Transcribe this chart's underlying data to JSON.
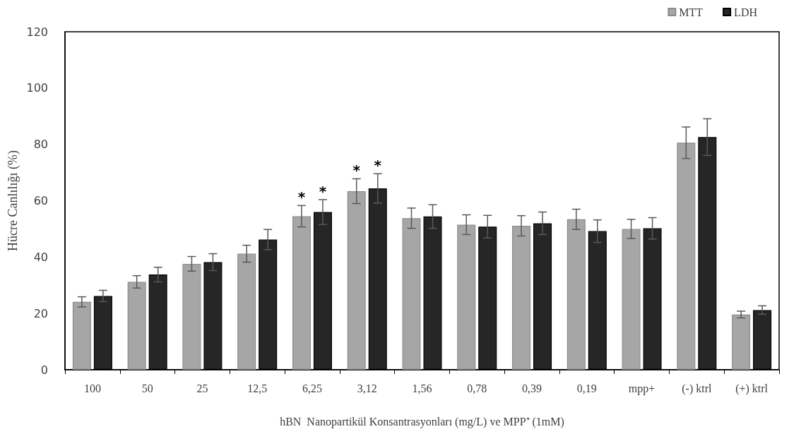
{
  "chart_data": {
    "type": "bar",
    "xlabel": "hBN  Nanopartikül Konsantrasyonları (mg/L) ve MPP⁺ (1mM)",
    "ylabel": "Hücre Canlılığı (%)",
    "categories": [
      "100",
      "50",
      "25",
      "12,5",
      "6,25",
      "3,12",
      "1,56",
      "0,78",
      "0,39",
      "0,19",
      "mpp+",
      "(-) ktrl",
      "(+) ktrl"
    ],
    "series": [
      {
        "name": "MTT",
        "color": "#a6a6a6",
        "values": [
          24.1,
          31.2,
          37.6,
          41.2,
          54.5,
          63.4,
          53.8,
          51.5,
          51.1,
          53.4,
          50,
          80.6,
          19.6
        ],
        "errors": [
          1.8,
          2.2,
          2.6,
          3,
          3.8,
          4.4,
          3.6,
          3.5,
          3.6,
          3.6,
          3.4,
          5.6,
          1.2
        ]
      },
      {
        "name": "LDH",
        "color": "#262626",
        "values": [
          26.2,
          33.8,
          38.2,
          46.2,
          56,
          64.4,
          54.4,
          50.8,
          52,
          49.2,
          50.2,
          82.6,
          21.2
        ],
        "errors": [
          2,
          2.6,
          3,
          3.6,
          4.4,
          5.2,
          4.2,
          4,
          4,
          4,
          3.8,
          6.5,
          1.5
        ]
      }
    ],
    "ylim": [
      0,
      120
    ],
    "yticks": [
      0,
      20,
      40,
      60,
      80,
      100,
      120
    ],
    "grid": false,
    "legend": "top right",
    "annotations": [
      {
        "text": "*",
        "x": "6,25",
        "y": 54.5
      },
      {
        "text": "*",
        "x": "6,25",
        "y": 56
      },
      {
        "text": "*",
        "x": "3,12",
        "y": 63.4
      },
      {
        "text": "*",
        "x": "3,12",
        "y": 64.4
      }
    ]
  }
}
